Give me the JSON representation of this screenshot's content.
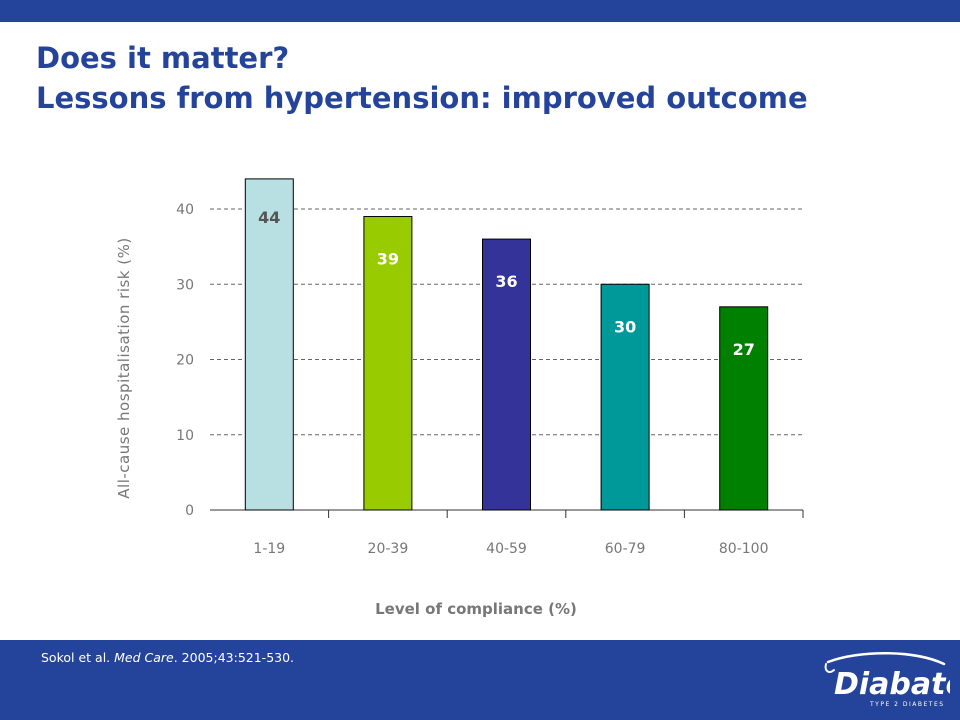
{
  "slide": {
    "title_line1": "Does it matter?",
    "title_line2": "Lessons from hypertension: improved outcome",
    "citation_authors": "Sokol et al. ",
    "citation_journal": "Med Care",
    "citation_rest": ". 2005;43:521-530.",
    "logo_text": "Diabate",
    "logo_subtext": "TYPE 2 DIABETES"
  },
  "colors": {
    "brand": "#24449b",
    "bars": [
      "#b8dfe2",
      "#99cc00",
      "#333399",
      "#009999",
      "#008000"
    ],
    "label_colors": [
      "#555555",
      "#ffffff",
      "#ffffff",
      "#ffffff",
      "#ffffff"
    ]
  },
  "chart_data": {
    "type": "bar",
    "categories": [
      "1-19",
      "20-39",
      "40-59",
      "60-79",
      "80-100"
    ],
    "values": [
      44,
      39,
      36,
      30,
      27
    ],
    "data_labels": [
      "44",
      "39",
      "36",
      "30",
      "27"
    ],
    "xlabel": "Level of compliance (%)",
    "ylabel": "All-cause hospitalisation risk (%)",
    "ylim": [
      0,
      40
    ],
    "yticks": [
      0,
      10,
      20,
      30,
      40
    ],
    "grid": true,
    "legend": false
  }
}
